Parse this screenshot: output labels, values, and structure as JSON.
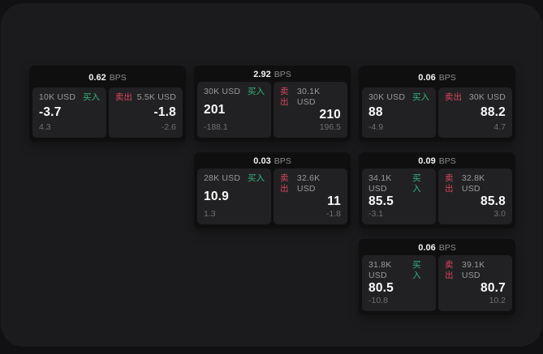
{
  "colors": {
    "buy_green": "#35b57e",
    "sell_red": "#d9455f",
    "card_background": "#0f0f10",
    "panel_background": "#212123",
    "app_background": "#1b1b1d"
  },
  "labels": {
    "bps_unit": "BPS",
    "buy": "买入",
    "sell": "卖出"
  },
  "cards": [
    {
      "bps_value": "0.62",
      "bps_unit": "BPS",
      "buy": {
        "amount": "10K USD",
        "side_label": "买入",
        "price": "-3.7",
        "sub_value": "4.3"
      },
      "sell": {
        "amount": "5.5K USD",
        "side_label": "卖出",
        "price": "-1.8",
        "sub_value": "-2.6"
      }
    },
    {
      "bps_value": "2.92",
      "bps_unit": "BPS",
      "buy": {
        "amount": "30K USD",
        "side_label": "买入",
        "price": "201",
        "sub_value": "-188.1"
      },
      "sell": {
        "amount": "30.1K USD",
        "side_label": "卖出",
        "price": "210",
        "sub_value": "196.5"
      }
    },
    {
      "bps_value": "0.06",
      "bps_unit": "BPS",
      "buy": {
        "amount": "30K USD",
        "side_label": "买入",
        "price": "88",
        "sub_value": "-4.9"
      },
      "sell": {
        "amount": "30K USD",
        "side_label": "卖出",
        "price": "88.2",
        "sub_value": "4.7"
      }
    },
    {
      "bps_value": "0.03",
      "bps_unit": "BPS",
      "buy": {
        "amount": "28K USD",
        "side_label": "买入",
        "price": "10.9",
        "sub_value": "1.3"
      },
      "sell": {
        "amount": "32.6K USD",
        "side_label": "卖出",
        "price": "11",
        "sub_value": "-1.8"
      }
    },
    {
      "bps_value": "0.09",
      "bps_unit": "BPS",
      "buy": {
        "amount": "34.1K USD",
        "side_label": "买入",
        "price": "85.5",
        "sub_value": "-3.1"
      },
      "sell": {
        "amount": "32.8K USD",
        "side_label": "卖出",
        "price": "85.8",
        "sub_value": "3.0"
      }
    },
    {
      "bps_value": "0.06",
      "bps_unit": "BPS",
      "buy": {
        "amount": "31.8K USD",
        "side_label": "买入",
        "price": "80.5",
        "sub_value": "-10.8"
      },
      "sell": {
        "amount": "39.1K USD",
        "side_label": "卖出",
        "price": "80.7",
        "sub_value": "10.2"
      }
    }
  ]
}
